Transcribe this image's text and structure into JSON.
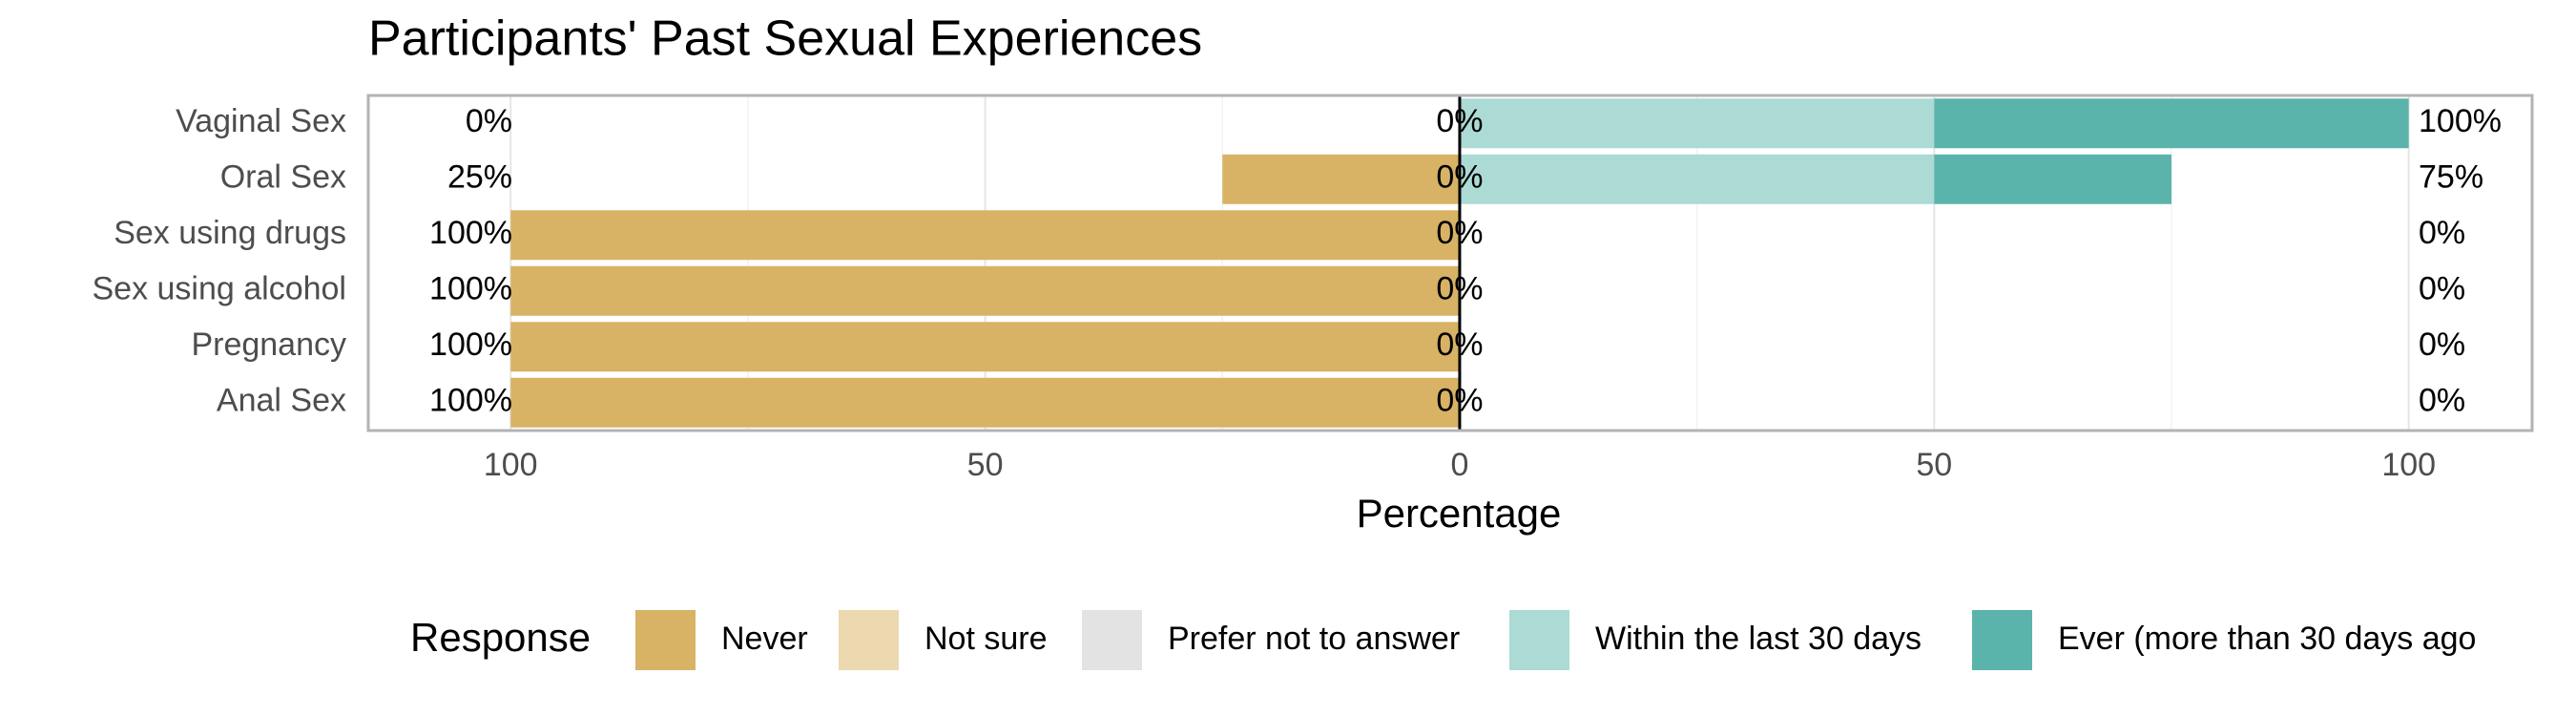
{
  "chart_data": {
    "type": "diverging_bar",
    "title": "Participants' Past Sexual Experiences",
    "x_label": "Percentage",
    "legend_title": "Response",
    "categories": [
      "Vaginal Sex",
      "Oral Sex",
      "Sex using drugs",
      "Sex using alcohol",
      "Pregnancy",
      "Anal Sex"
    ],
    "series": [
      {
        "name": "Never",
        "color": "#d8b365",
        "side": "left",
        "values": [
          0,
          25,
          100,
          100,
          100,
          100
        ]
      },
      {
        "name": "Not sure",
        "color": "#ecd9b0",
        "side": "left",
        "values": [
          0,
          0,
          0,
          0,
          0,
          0
        ]
      },
      {
        "name": "Prefer not to answer",
        "color": "#e3e3e3",
        "side": "center",
        "values": [
          0,
          0,
          0,
          0,
          0,
          0
        ]
      },
      {
        "name": "Within the last 30 days",
        "color": "#acdad5",
        "side": "right",
        "values": [
          50,
          50,
          0,
          0,
          0,
          0
        ]
      },
      {
        "name": "Ever (more than 30 days ago",
        "color": "#5ab4ac",
        "side": "right",
        "values": [
          50,
          25,
          0,
          0,
          0,
          0
        ]
      }
    ],
    "left_totals": {
      "values": [
        0,
        25,
        100,
        100,
        100,
        100
      ],
      "value_labels": [
        "0%",
        "25%",
        "100%",
        "100%",
        "100%",
        "100%"
      ]
    },
    "center_totals": {
      "values": [
        0,
        0,
        0,
        0,
        0,
        0
      ],
      "value_labels": [
        "0%",
        "0%",
        "0%",
        "0%",
        "0%",
        "0%"
      ]
    },
    "right_totals": {
      "values": [
        100,
        75,
        0,
        0,
        0,
        0
      ],
      "value_labels": [
        "100%",
        "75%",
        "0%",
        "0%",
        "0%",
        "0%"
      ]
    },
    "xlim": [
      -115,
      113
    ],
    "xticks": [
      {
        "value": -100,
        "label": "100"
      },
      {
        "value": -50,
        "label": "50"
      },
      0,
      50,
      100
    ],
    "xminorticks": [
      -75,
      -25,
      25,
      75
    ],
    "grid": true,
    "legend_position": "bottom"
  }
}
